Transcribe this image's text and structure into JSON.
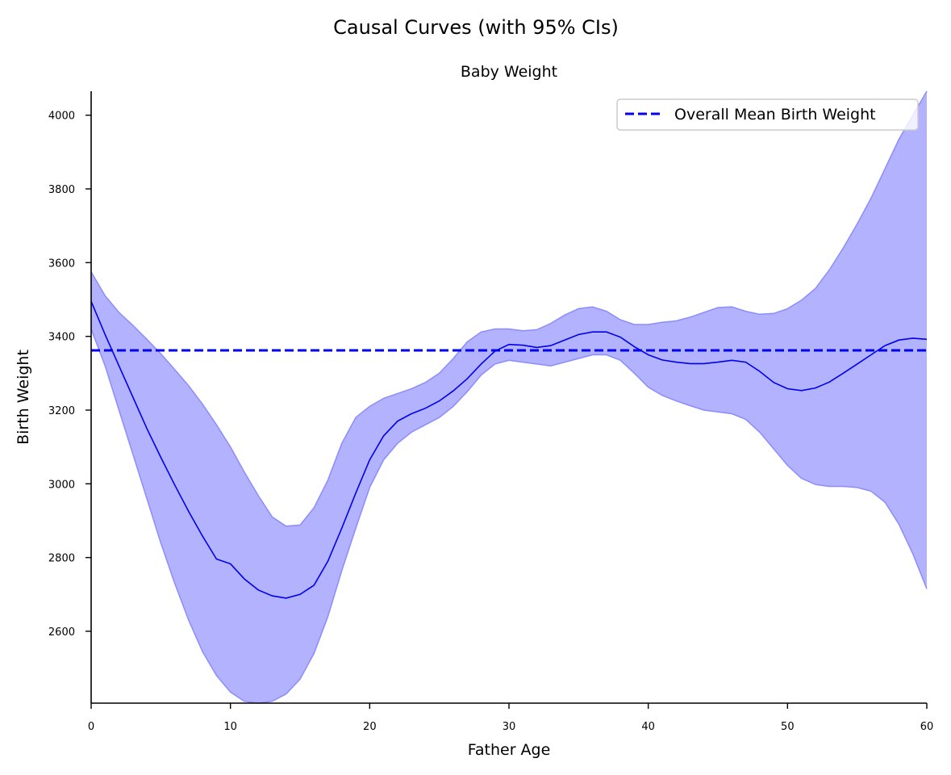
{
  "chart_data": {
    "type": "line",
    "suptitle": "Causal Curves (with 95% CIs)",
    "title": "Baby Weight",
    "xlabel": "Father Age",
    "ylabel": "Birth Weight",
    "xlim": [
      0,
      60
    ],
    "ylim": [
      2405,
      4065
    ],
    "xticks": [
      0,
      10,
      20,
      30,
      40,
      50,
      60
    ],
    "yticks": [
      2600,
      2800,
      3000,
      3200,
      3400,
      3600,
      3800,
      4000
    ],
    "grid": false,
    "legend_position": "top-right",
    "colors": {
      "curve": "#0000ee",
      "band": "#b2b2ff",
      "band_edge": "#8c8cff",
      "mean_line": "#0000ee"
    },
    "mean_line": {
      "label": "Overall Mean Birth Weight",
      "y": 3362
    },
    "series": [
      {
        "x": [
          0,
          1,
          2,
          3,
          4,
          5,
          6,
          7,
          8,
          9,
          10,
          11,
          12,
          13,
          14,
          15,
          16,
          17,
          18,
          19,
          20,
          21,
          22,
          23,
          24,
          25,
          26,
          27,
          28,
          29,
          30,
          31,
          32,
          33,
          34,
          35,
          36,
          37,
          38,
          39,
          40,
          41,
          42,
          43,
          44,
          45,
          46,
          47,
          48,
          49,
          50,
          51,
          52,
          53,
          54,
          55,
          56,
          57,
          58,
          59,
          60
        ],
        "y": [
          3495,
          3405,
          3320,
          3235,
          3150,
          3072,
          2997,
          2925,
          2858,
          2796,
          2783,
          2742,
          2712,
          2696,
          2690,
          2700,
          2725,
          2790,
          2880,
          2975,
          3065,
          3130,
          3170,
          3190,
          3205,
          3225,
          3252,
          3285,
          3325,
          3360,
          3378,
          3376,
          3370,
          3375,
          3390,
          3405,
          3412,
          3412,
          3398,
          3372,
          3350,
          3336,
          3330,
          3326,
          3326,
          3330,
          3335,
          3330,
          3305,
          3275,
          3258,
          3253,
          3260,
          3276,
          3300,
          3325,
          3350,
          3375,
          3390,
          3395,
          3392
        ],
        "lower": [
          3420,
          3320,
          3200,
          3080,
          2960,
          2840,
          2730,
          2630,
          2545,
          2480,
          2435,
          2410,
          2405,
          2410,
          2430,
          2470,
          2540,
          2640,
          2765,
          2880,
          2990,
          3065,
          3110,
          3140,
          3160,
          3180,
          3210,
          3250,
          3295,
          3325,
          3335,
          3330,
          3325,
          3320,
          3330,
          3340,
          3350,
          3350,
          3335,
          3300,
          3262,
          3240,
          3225,
          3212,
          3200,
          3195,
          3190,
          3175,
          3140,
          3095,
          3050,
          3015,
          2998,
          2993,
          2993,
          2990,
          2980,
          2950,
          2890,
          2810,
          2715
        ],
        "upper": [
          3575,
          3510,
          3465,
          3430,
          3392,
          3353,
          3310,
          3266,
          3216,
          3160,
          3100,
          3032,
          2968,
          2910,
          2885,
          2888,
          2935,
          3010,
          3110,
          3180,
          3210,
          3232,
          3245,
          3258,
          3275,
          3300,
          3340,
          3385,
          3412,
          3420,
          3420,
          3415,
          3418,
          3435,
          3458,
          3475,
          3480,
          3468,
          3445,
          3432,
          3432,
          3438,
          3442,
          3452,
          3465,
          3478,
          3480,
          3468,
          3460,
          3462,
          3475,
          3498,
          3530,
          3580,
          3640,
          3705,
          3775,
          3855,
          3935,
          4000,
          4065
        ]
      }
    ]
  }
}
